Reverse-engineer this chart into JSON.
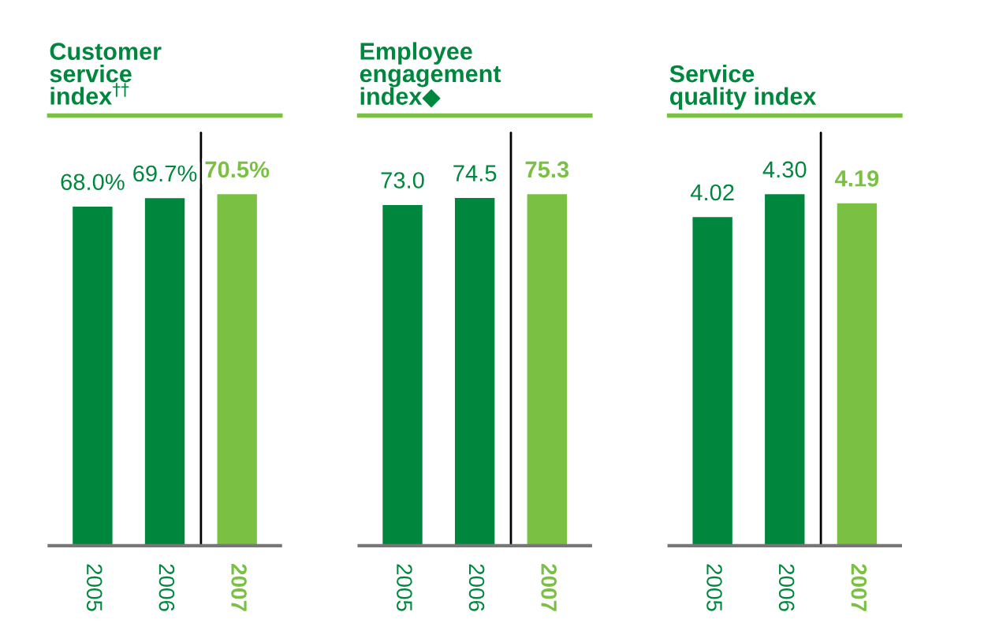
{
  "chart_data": [
    {
      "type": "bar",
      "title": "Customer\nservice\nindex$^{††}$",
      "categories": [
        "2005",
        "2006",
        "2007"
      ],
      "values": [
        68.0,
        69.7,
        70.5
      ],
      "value_labels": [
        "68.0%",
        "69.7%",
        "70.5%"
      ],
      "colors": [
        "#00873e",
        "#00873e",
        "#7ac143"
      ]
    },
    {
      "type": "bar",
      "title": "Employee\nengagement\nindex◆",
      "categories": [
        "2005",
        "2006",
        "2007"
      ],
      "values": [
        73.0,
        74.5,
        75.3
      ],
      "value_labels": [
        "73.0",
        "74.5",
        "75.3"
      ],
      "colors": [
        "#00873e",
        "#00873e",
        "#7ac143"
      ]
    },
    {
      "type": "bar",
      "title": "Service\nquality index",
      "categories": [
        "2005",
        "2006",
        "2007"
      ],
      "values": [
        4.02,
        4.3,
        4.19
      ],
      "value_labels": [
        "4.02",
        "4.30",
        "4.19"
      ],
      "colors": [
        "#00873e",
        "#00873e",
        "#7ac143"
      ]
    }
  ]
}
